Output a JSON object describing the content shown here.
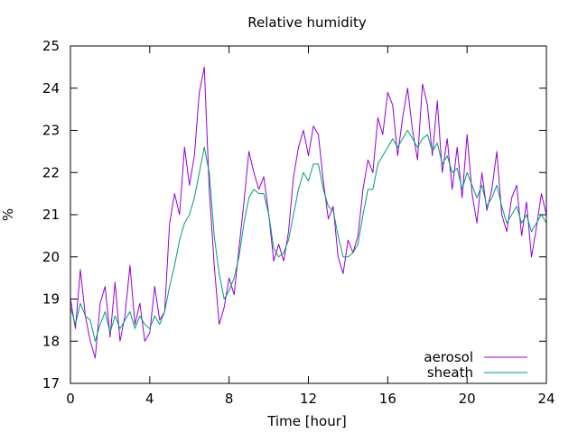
{
  "chart_data": {
    "type": "line",
    "title": "Relative humidity",
    "xlabel": "Time [hour]",
    "ylabel": "%",
    "xlim": [
      0,
      24
    ],
    "ylim": [
      17,
      25
    ],
    "xticks": [
      0,
      4,
      8,
      12,
      16,
      20,
      24
    ],
    "yticks": [
      17,
      18,
      19,
      20,
      21,
      22,
      23,
      24,
      25
    ],
    "grid": false,
    "legend_position": "bottom-right",
    "series": [
      {
        "name": "aerosol",
        "color": "#9400d3",
        "x": [
          0,
          0.25,
          0.5,
          0.75,
          1,
          1.25,
          1.5,
          1.75,
          2,
          2.25,
          2.5,
          2.75,
          3,
          3.25,
          3.5,
          3.75,
          4,
          4.25,
          4.5,
          4.75,
          5,
          5.25,
          5.5,
          5.75,
          6,
          6.25,
          6.5,
          6.75,
          7,
          7.25,
          7.5,
          7.75,
          8,
          8.25,
          8.5,
          8.75,
          9,
          9.25,
          9.5,
          9.75,
          10,
          10.25,
          10.5,
          10.75,
          11,
          11.25,
          11.5,
          11.75,
          12,
          12.25,
          12.5,
          12.75,
          13,
          13.25,
          13.5,
          13.75,
          14,
          14.25,
          14.5,
          14.75,
          15,
          15.25,
          15.5,
          15.75,
          16,
          16.25,
          16.5,
          16.75,
          17,
          17.25,
          17.5,
          17.75,
          18,
          18.25,
          18.5,
          18.75,
          19,
          19.25,
          19.5,
          19.75,
          20,
          20.25,
          20.5,
          20.75,
          21,
          21.25,
          21.5,
          21.75,
          22,
          22.25,
          22.5,
          22.75,
          23,
          23.25,
          23.5,
          23.75,
          24
        ],
        "values": [
          19.0,
          18.3,
          19.7,
          18.6,
          18.0,
          17.6,
          18.9,
          19.3,
          18.1,
          19.4,
          18.0,
          18.6,
          19.8,
          18.4,
          18.9,
          18.0,
          18.2,
          19.3,
          18.5,
          18.7,
          20.8,
          21.5,
          21.0,
          22.6,
          21.7,
          22.4,
          23.9,
          24.5,
          21.6,
          19.8,
          18.4,
          18.8,
          19.5,
          19.1,
          20.2,
          21.3,
          22.5,
          22.0,
          21.6,
          21.9,
          21.0,
          19.9,
          20.3,
          19.9,
          20.6,
          21.9,
          22.6,
          23.0,
          22.4,
          23.1,
          22.9,
          21.8,
          20.9,
          21.2,
          20.0,
          19.6,
          20.4,
          20.1,
          20.5,
          21.6,
          22.3,
          22.0,
          23.3,
          22.9,
          23.9,
          23.6,
          22.4,
          23.3,
          24.0,
          23.0,
          22.3,
          24.1,
          23.6,
          22.4,
          23.7,
          22.0,
          22.8,
          21.6,
          22.6,
          21.4,
          22.9,
          21.5,
          20.8,
          22.0,
          21.1,
          21.6,
          22.5,
          21.0,
          20.6,
          21.4,
          21.7,
          20.5,
          21.3,
          20.0,
          20.7,
          21.5,
          21.0
        ],
        "line_width": 1
      },
      {
        "name": "sheath",
        "color": "#009e73",
        "x": [
          0,
          0.25,
          0.5,
          0.75,
          1,
          1.25,
          1.5,
          1.75,
          2,
          2.25,
          2.5,
          2.75,
          3,
          3.25,
          3.5,
          3.75,
          4,
          4.25,
          4.5,
          4.75,
          5,
          5.25,
          5.5,
          5.75,
          6,
          6.25,
          6.5,
          6.75,
          7,
          7.25,
          7.5,
          7.75,
          8,
          8.25,
          8.5,
          8.75,
          9,
          9.25,
          9.5,
          9.75,
          10,
          10.25,
          10.5,
          10.75,
          11,
          11.25,
          11.5,
          11.75,
          12,
          12.25,
          12.5,
          12.75,
          13,
          13.25,
          13.5,
          13.75,
          14,
          14.25,
          14.5,
          14.75,
          15,
          15.25,
          15.5,
          15.75,
          16,
          16.25,
          16.5,
          16.75,
          17,
          17.25,
          17.5,
          17.75,
          18,
          18.25,
          18.5,
          18.75,
          19,
          19.25,
          19.5,
          19.75,
          20,
          20.25,
          20.5,
          20.75,
          21,
          21.25,
          21.5,
          21.75,
          22,
          22.25,
          22.5,
          22.75,
          23,
          23.25,
          23.5,
          23.75,
          24
        ],
        "values": [
          18.8,
          18.4,
          18.9,
          18.6,
          18.5,
          18.0,
          18.4,
          18.7,
          18.2,
          18.6,
          18.3,
          18.5,
          18.7,
          18.3,
          18.6,
          18.4,
          18.3,
          18.6,
          18.4,
          18.7,
          19.3,
          19.8,
          20.4,
          20.8,
          21.0,
          21.4,
          22.0,
          22.6,
          22.0,
          20.5,
          19.6,
          19.0,
          19.2,
          19.5,
          20.0,
          20.8,
          21.4,
          21.6,
          21.5,
          21.5,
          21.0,
          20.2,
          20.0,
          20.1,
          20.4,
          21.0,
          21.6,
          22.0,
          21.8,
          22.2,
          22.2,
          21.6,
          21.2,
          21.1,
          20.5,
          20.0,
          20.0,
          20.1,
          20.3,
          21.0,
          21.6,
          21.6,
          22.2,
          22.4,
          22.6,
          22.8,
          22.6,
          22.8,
          23.0,
          22.8,
          22.6,
          22.8,
          22.9,
          22.5,
          22.7,
          22.2,
          22.4,
          22.0,
          22.1,
          21.6,
          22.0,
          21.7,
          21.4,
          21.7,
          21.2,
          21.4,
          21.7,
          21.2,
          20.8,
          21.0,
          21.2,
          20.8,
          21.0,
          20.6,
          20.8,
          21.0,
          20.8
        ],
        "line_width": 1
      }
    ]
  }
}
